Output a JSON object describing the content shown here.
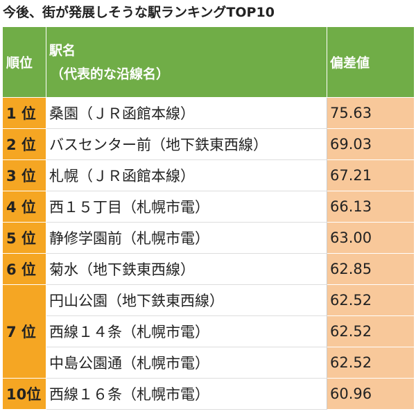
{
  "title": "今後、街が発展しそうな駅ランキングTOP10",
  "headers": {
    "rank": "順位",
    "station": "駅名",
    "station_sub": "（代表的な沿線名）",
    "value": "偏差値"
  },
  "rows": [
    {
      "rank": "1 位",
      "station": "桑園（ＪＲ函館本線）",
      "value": "75.63"
    },
    {
      "rank": "2 位",
      "station": "バスセンター前（地下鉄東西線）",
      "value": "69.03"
    },
    {
      "rank": "3 位",
      "station": "札幌（ＪＲ函館本線）",
      "value": "67.21"
    },
    {
      "rank": "4 位",
      "station": "西１５丁目（札幌市電）",
      "value": "66.13"
    },
    {
      "rank": "5 位",
      "station": "静修学園前（札幌市電）",
      "value": "63.00"
    },
    {
      "rank": "6 位",
      "station": "菊水（地下鉄東西線）",
      "value": "62.85"
    },
    {
      "rank": "7 位",
      "station": "円山公園（地下鉄東西線）",
      "value": "62.52"
    },
    {
      "rank": "",
      "station": "西線１４条（札幌市電）",
      "value": "62.52"
    },
    {
      "rank": "",
      "station": "中島公園通（札幌市電）",
      "value": "62.52"
    },
    {
      "rank": "10位",
      "station": "西線１６条（札幌市電）",
      "value": "60.96"
    }
  ]
}
